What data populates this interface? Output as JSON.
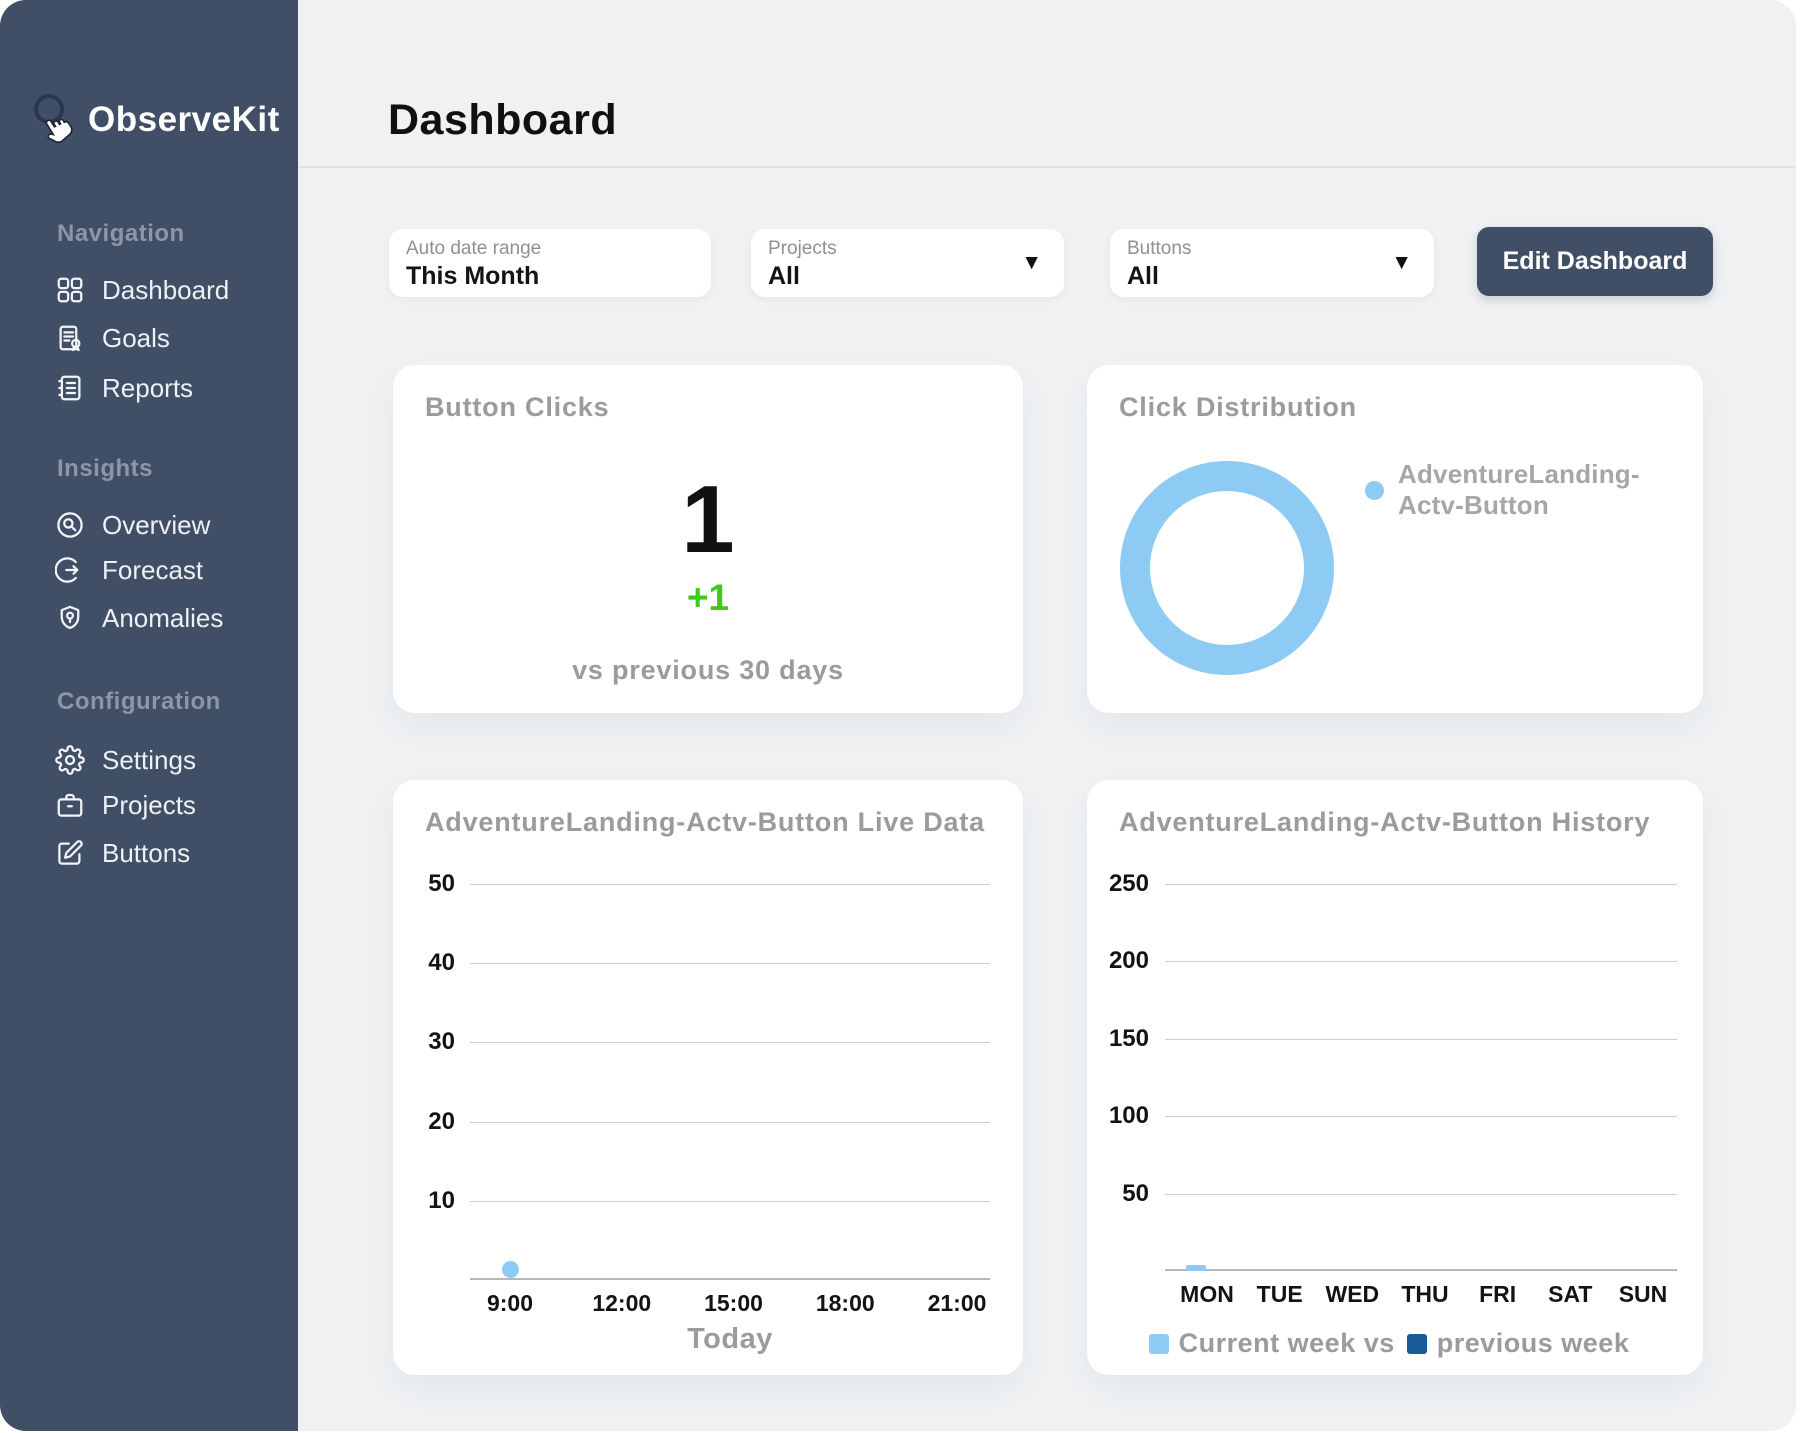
{
  "app": {
    "name": "ObserveKit"
  },
  "colors": {
    "sidebar": "#404F66",
    "background": "#EFF1F3",
    "accent_blue": "#8DCBF4",
    "navy": "#1A5A96",
    "green": "#3FCB14",
    "gray_text": "#9B9B9B"
  },
  "sidebar": {
    "logo": "ObserveKit",
    "sections": [
      {
        "label": "Navigation",
        "items": [
          {
            "label": "Dashboard",
            "icon": "grid-icon"
          },
          {
            "label": "Goals",
            "icon": "goals-document-icon"
          },
          {
            "label": "Reports",
            "icon": "reports-notebook-icon"
          }
        ]
      },
      {
        "label": "Insights",
        "items": [
          {
            "label": "Overview",
            "icon": "magnifier-circle-icon"
          },
          {
            "label": "Forecast",
            "icon": "arrow-circle-icon"
          },
          {
            "label": "Anomalies",
            "icon": "shield-pin-icon"
          }
        ]
      },
      {
        "label": "Configuration",
        "items": [
          {
            "label": "Settings",
            "icon": "gear-icon"
          },
          {
            "label": "Projects",
            "icon": "briefcase-icon"
          },
          {
            "label": "Buttons",
            "icon": "edit-square-icon"
          }
        ]
      }
    ]
  },
  "header": {
    "title": "Dashboard"
  },
  "filters": {
    "date_range": {
      "label": "Auto date range",
      "value": "This Month"
    },
    "projects": {
      "label": "Projects",
      "value": "All"
    },
    "buttons": {
      "label": "Buttons",
      "value": "All"
    },
    "edit_button_label": "Edit Dashboard"
  },
  "cards": {
    "button_clicks": {
      "title": "Button Clicks",
      "value": "1",
      "delta": "+1",
      "caption": "vs previous 30 days"
    },
    "click_distribution": {
      "title": "Click Distribution",
      "legend": "AdventureLanding-Actv-Button"
    },
    "live_data": {
      "title": "AdventureLanding-Actv-Button Live Data",
      "axis_title": "Today"
    },
    "history": {
      "title": "AdventureLanding-Actv-Button History",
      "legend_current": "Current week vs",
      "legend_previous": "previous week"
    }
  },
  "chart_data": [
    {
      "type": "pie",
      "title": "Click Distribution",
      "labels": [
        "AdventureLanding-Actv-Button"
      ],
      "values": [
        1
      ],
      "share_pct": [
        100
      ],
      "donut": true,
      "colors": [
        "#8DCBF4"
      ],
      "legend_position": "right"
    },
    {
      "type": "scatter",
      "title": "AdventureLanding-Actv-Button Live Data",
      "x": [
        "9:00",
        "12:00",
        "15:00",
        "18:00",
        "21:00"
      ],
      "points": [
        {
          "x": "9:00",
          "y": 1
        }
      ],
      "ylim": [
        0,
        50
      ],
      "yticks": [
        10,
        20,
        30,
        40,
        50
      ],
      "xlabel": "Today",
      "grid": true,
      "point_color": "#8DCBF4"
    },
    {
      "type": "bar",
      "title": "AdventureLanding-Actv-Button History",
      "categories": [
        "MON",
        "TUE",
        "WED",
        "THU",
        "FRI",
        "SAT",
        "SUN"
      ],
      "series": [
        {
          "name": "Current week",
          "color": "#8DCBF4",
          "values": [
            1,
            0,
            0,
            0,
            0,
            0,
            0
          ]
        },
        {
          "name": "previous week",
          "color": "#1A5A96",
          "values": [
            0,
            0,
            0,
            0,
            0,
            0,
            0
          ]
        }
      ],
      "ylim": [
        0,
        250
      ],
      "yticks": [
        50,
        100,
        150,
        200,
        250
      ],
      "legend_position": "bottom",
      "grid": true
    }
  ]
}
